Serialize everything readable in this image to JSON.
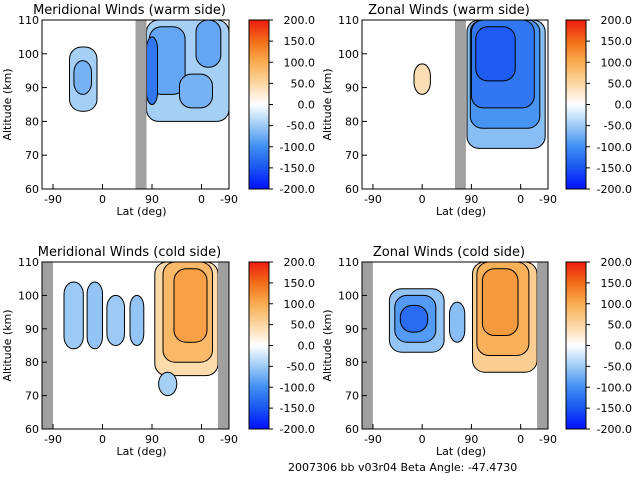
{
  "footer": "2007306 bb v03r04   Beta Angle: -47.4730",
  "colors": {
    "gap": "#a0a0a0",
    "line": "#000000",
    "cmap": [
      {
        "v": -200,
        "c": "#0010ff"
      },
      {
        "v": -150,
        "c": "#1a55f0"
      },
      {
        "v": -100,
        "c": "#3f8ef2"
      },
      {
        "v": -50,
        "c": "#9ccaf5"
      },
      {
        "v": 0,
        "c": "#ffffff"
      },
      {
        "v": 50,
        "c": "#fbd6a3"
      },
      {
        "v": 100,
        "c": "#f8ad50"
      },
      {
        "v": 150,
        "c": "#f26e18"
      },
      {
        "v": 200,
        "c": "#ee1c10"
      }
    ]
  },
  "chart_data": [
    {
      "type": "heatmap",
      "title": "Meridional Winds (warm side)",
      "xlabel": "Lat (deg)",
      "ylabel": "Altitude (km)",
      "xticks": [
        "-90",
        "0",
        "90",
        "0",
        "-90"
      ],
      "yticks": [
        60,
        70,
        80,
        90,
        100,
        110
      ],
      "ylim": [
        60,
        110
      ],
      "colorbar": {
        "range": [
          -200,
          200
        ],
        "ticks": [
          "200.0",
          "150.0",
          "100.0",
          "50.0",
          "0.0",
          "-50.0",
          "-100.0",
          "-150.0",
          "-200.0"
        ]
      },
      "gaps": [
        [
          60,
          80
        ]
      ],
      "blobs": [
        {
          "xr": [
            -60,
            -10
          ],
          "yr": [
            83,
            102
          ],
          "v": -45
        },
        {
          "xr": [
            -52,
            -20
          ],
          "yr": [
            88,
            98
          ],
          "v": -70
        },
        {
          "xr": [
            80,
            230
          ],
          "yr": [
            80,
            110
          ],
          "v": -45
        },
        {
          "xr": [
            85,
            150
          ],
          "yr": [
            88,
            108
          ],
          "v": -80
        },
        {
          "xr": [
            170,
            215
          ],
          "yr": [
            96,
            110
          ],
          "v": -80
        },
        {
          "xr": [
            140,
            200
          ],
          "yr": [
            84,
            94
          ],
          "v": -70
        },
        {
          "xr": [
            80,
            100
          ],
          "yr": [
            85,
            105
          ],
          "v": -120
        }
      ]
    },
    {
      "type": "heatmap",
      "title": "Zonal Winds (warm side)",
      "xlabel": "Lat (deg)",
      "ylabel": "Altitude (km)",
      "xticks": [
        "-90",
        "0",
        "90",
        "0",
        "-90"
      ],
      "yticks": [
        60,
        70,
        80,
        90,
        100,
        110
      ],
      "ylim": [
        60,
        110
      ],
      "colorbar": {
        "range": [
          -200,
          200
        ],
        "ticks": [
          "200.0",
          "150.0",
          "100.0",
          "50.0",
          "0.0",
          "-50.0",
          "-100.0",
          "-150.0",
          "-200.0"
        ]
      },
      "gaps": [
        [
          60,
          80
        ]
      ],
      "blobs": [
        {
          "xr": [
            -15,
            15
          ],
          "yr": [
            88,
            97
          ],
          "v": 40
        },
        {
          "xr": [
            82,
            225
          ],
          "yr": [
            72,
            110
          ],
          "v": -60
        },
        {
          "xr": [
            88,
            215
          ],
          "yr": [
            78,
            110
          ],
          "v": -95
        },
        {
          "xr": [
            90,
            205
          ],
          "yr": [
            84,
            110
          ],
          "v": -120
        },
        {
          "xr": [
            98,
            170
          ],
          "yr": [
            92,
            108
          ],
          "v": -145
        }
      ]
    },
    {
      "type": "heatmap",
      "title": "Meridional Winds (cold side)",
      "xlabel": "Lat (deg)",
      "ylabel": "Altitude (km)",
      "xticks": [
        "-90",
        "0",
        "90",
        "0",
        "-90"
      ],
      "yticks": [
        60,
        70,
        80,
        90,
        100,
        110
      ],
      "ylim": [
        60,
        110
      ],
      "colorbar": {
        "range": [
          -200,
          200
        ],
        "ticks": [
          "200.0",
          "150.0",
          "100.0",
          "50.0",
          "0.0",
          "-50.0",
          "-100.0",
          "-150.0",
          "-200.0"
        ]
      },
      "gaps": [
        [
          -110,
          -90
        ],
        [
          210,
          230
        ]
      ],
      "blobs": [
        {
          "xr": [
            -70,
            -35
          ],
          "yr": [
            84,
            104
          ],
          "v": -50
        },
        {
          "xr": [
            -28,
            0
          ],
          "yr": [
            84,
            104
          ],
          "v": -55
        },
        {
          "xr": [
            8,
            40
          ],
          "yr": [
            85,
            100
          ],
          "v": -50
        },
        {
          "xr": [
            50,
            75
          ],
          "yr": [
            85,
            100
          ],
          "v": -55
        },
        {
          "xr": [
            95,
            210
          ],
          "yr": [
            76,
            110
          ],
          "v": 45
        },
        {
          "xr": [
            110,
            200
          ],
          "yr": [
            80,
            110
          ],
          "v": 85
        },
        {
          "xr": [
            130,
            190
          ],
          "yr": [
            86,
            108
          ],
          "v": 110
        },
        {
          "xr": [
            102,
            135
          ],
          "yr": [
            70,
            77
          ],
          "v": -45
        }
      ]
    },
    {
      "type": "heatmap",
      "title": "Zonal Winds (cold side)",
      "xlabel": "Lat (deg)",
      "ylabel": "Altitude (km)",
      "xticks": [
        "-90",
        "0",
        "90",
        "0",
        "-90"
      ],
      "yticks": [
        60,
        70,
        80,
        90,
        100,
        110
      ],
      "ylim": [
        60,
        110
      ],
      "colorbar": {
        "range": [
          -200,
          200
        ],
        "ticks": [
          "200.0",
          "150.0",
          "100.0",
          "50.0",
          "0.0",
          "-50.0",
          "-100.0",
          "-150.0",
          "-200.0"
        ]
      },
      "gaps": [
        [
          -110,
          -90
        ],
        [
          210,
          230
        ]
      ],
      "blobs": [
        {
          "xr": [
            -60,
            40
          ],
          "yr": [
            83,
            102
          ],
          "v": -55
        },
        {
          "xr": [
            -50,
            25
          ],
          "yr": [
            86,
            100
          ],
          "v": -90
        },
        {
          "xr": [
            -40,
            10
          ],
          "yr": [
            89,
            97
          ],
          "v": -130
        },
        {
          "xr": [
            50,
            78
          ],
          "yr": [
            86,
            98
          ],
          "v": -60
        },
        {
          "xr": [
            92,
            210
          ],
          "yr": [
            77,
            110
          ],
          "v": 60
        },
        {
          "xr": [
            100,
            195
          ],
          "yr": [
            82,
            110
          ],
          "v": 95
        },
        {
          "xr": [
            110,
            175
          ],
          "yr": [
            88,
            108
          ],
          "v": 115
        }
      ]
    }
  ]
}
